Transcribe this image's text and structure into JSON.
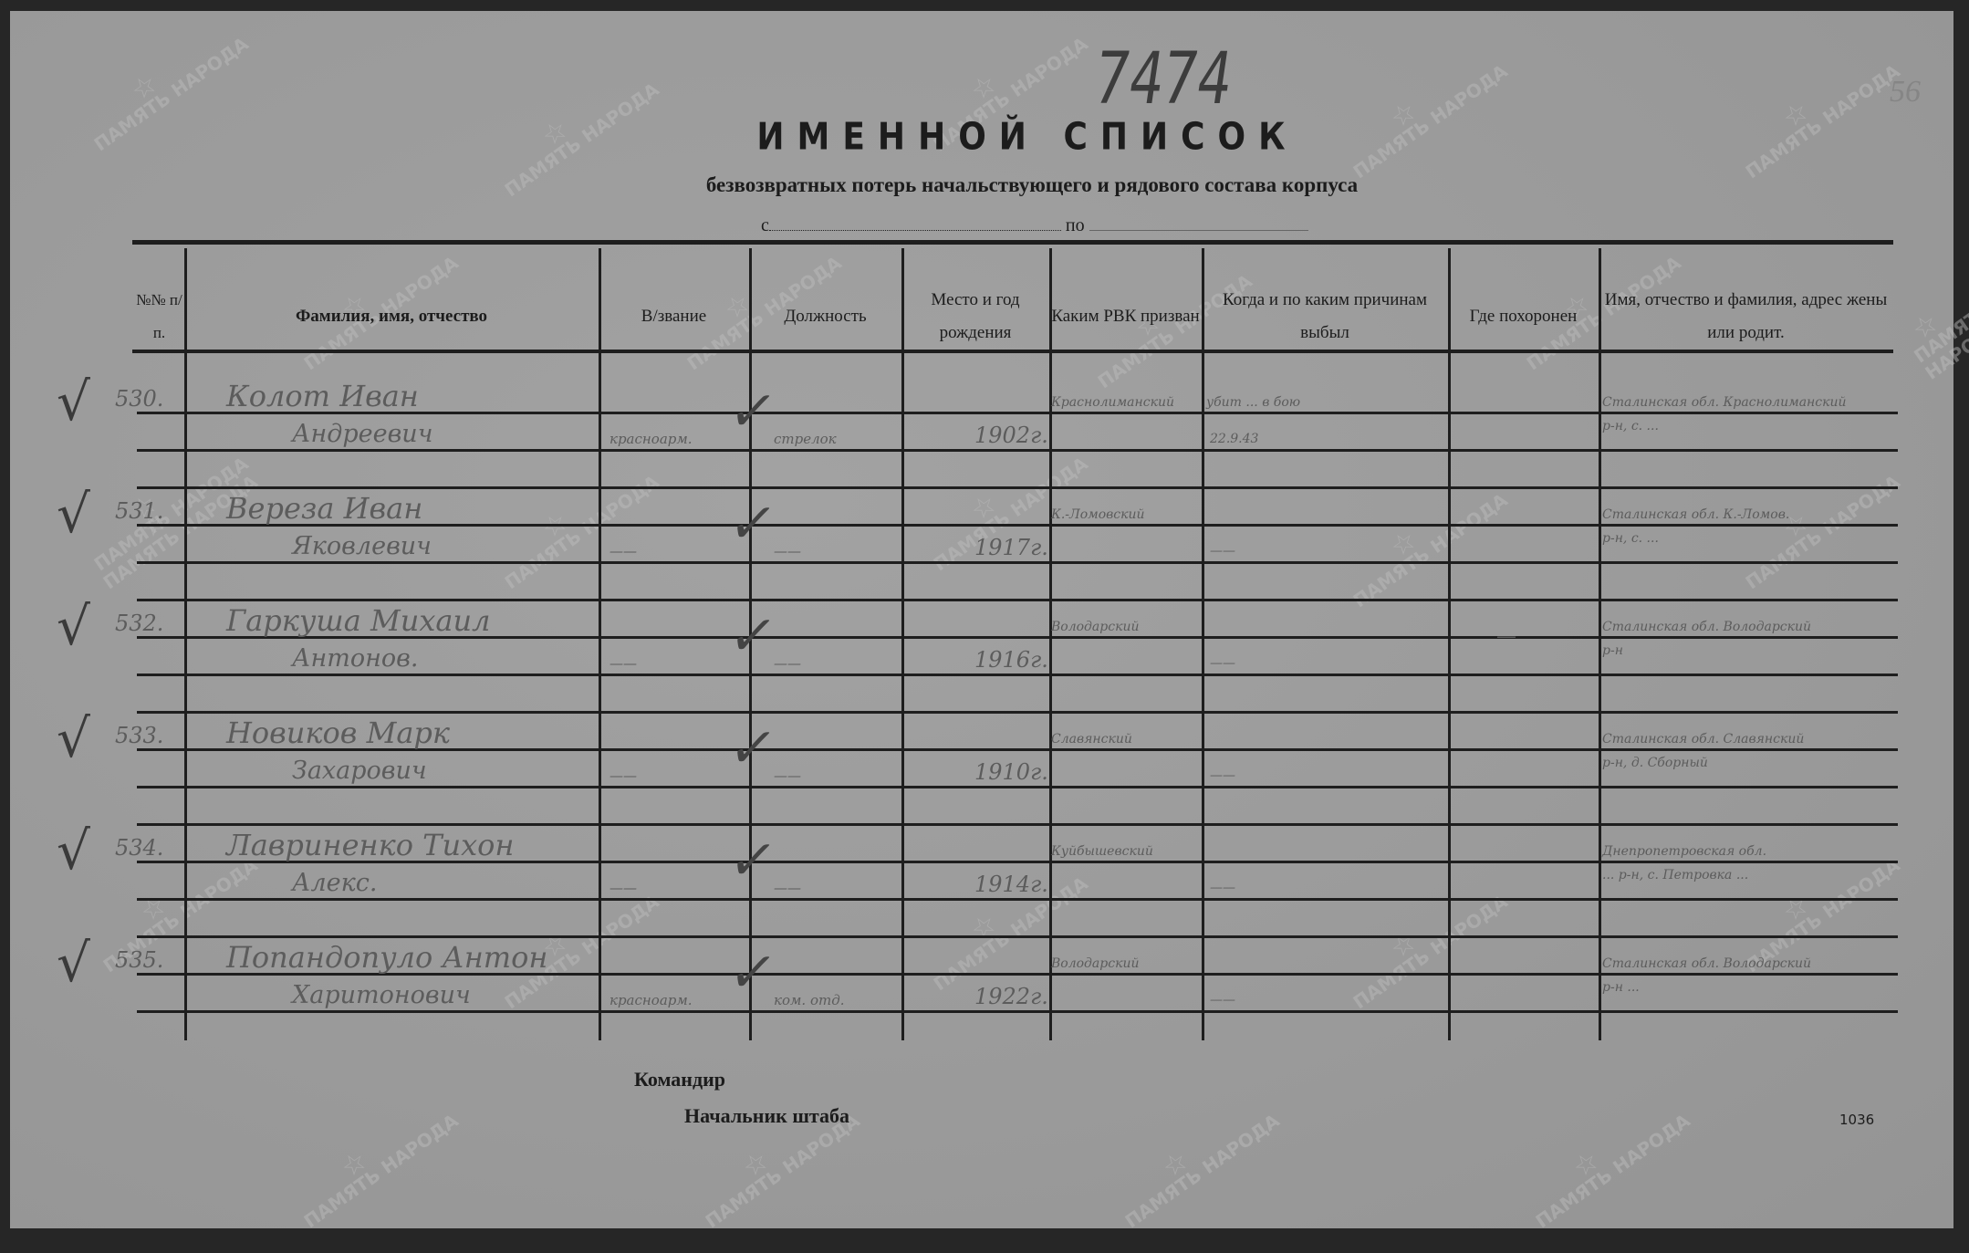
{
  "document": {
    "handwritten_number": "7474",
    "sheet_number": "56",
    "title": "ИМЕННОЙ СПИСОК",
    "subtitle": "безвозвратных потерь начальствующего и рядового состава корпуса",
    "period_from_label": "с",
    "period_to_label": "по",
    "form_number": "1036",
    "commander_label": "Командир",
    "chief_of_staff_label": "Начальник штаба",
    "watermark": "ПАМЯТЬ НАРОДА"
  },
  "table": {
    "headers": [
      "№№ п/п.",
      "Фамилия, имя, отчество",
      "В/звание",
      "Должность",
      "Место и год рождения",
      "Каким РВК призван",
      "Когда и по каким причинам выбыл",
      "Где похоронен",
      "Имя, отчество и фамилия, адрес жены или родит."
    ],
    "rows": [
      {
        "num": "530.",
        "name1": "Колот Иван",
        "name2": "Андреевич",
        "rank": "красноарм.",
        "position": "стрелок",
        "birth": "1902г.",
        "rvk": "Краснолиманский",
        "when1": "убит ... в бою",
        "when2": "22.9.43",
        "buried": "",
        "addr1": "Сталинская обл. Краснолиманский",
        "addr2": "р-н, с. ..."
      },
      {
        "num": "531.",
        "name1": "Вереза Иван",
        "name2": "Яковлевич",
        "rank": "——",
        "position": "——",
        "birth": "1917г.",
        "rvk": "К.-Ломовский",
        "when1": "",
        "when2": "——",
        "buried": "",
        "addr1": "Сталинская обл. К.-Ломов.",
        "addr2": "р-н, с. ..."
      },
      {
        "num": "532.",
        "name1": "Гаркуша Михаил",
        "name2": "Антонов.",
        "rank": "——",
        "position": "——",
        "birth": "1916г.",
        "rvk": "Володарский",
        "when1": "",
        "when2": "——",
        "buried": "—",
        "addr1": "Сталинская обл. Володарский",
        "addr2": "р-н"
      },
      {
        "num": "533.",
        "name1": "Новиков Марк",
        "name2": "Захарович",
        "rank": "——",
        "position": "——",
        "birth": "1910г.",
        "rvk": "Славянский",
        "when1": "",
        "when2": "——",
        "buried": "",
        "addr1": "Сталинская обл. Славянский",
        "addr2": "р-н, д. Сборный"
      },
      {
        "num": "534.",
        "name1": "Лавриненко Тихон",
        "name2": "Алекс.",
        "rank": "——",
        "position": "——",
        "birth": "1914г.",
        "rvk": "Куйбышевский",
        "when1": "",
        "when2": "——",
        "buried": "",
        "addr1": "Днепропетровская обл.",
        "addr2": "... р-н, с. Петровка ..."
      },
      {
        "num": "535.",
        "name1": "Попандопуло Антон",
        "name2": "Харитонович",
        "rank": "красноарм.",
        "position": "ком. отд.",
        "birth": "1922г.",
        "rvk": "Володарский",
        "when1": "",
        "when2": "——",
        "buried": "",
        "addr1": "Сталинская обл. Володарский",
        "addr2": "р-н ..."
      }
    ]
  },
  "colors": {
    "paper": "#9b9b9b",
    "ink": "#1c1c1c",
    "handwriting": "#5c5c5c",
    "frame": "#262626"
  }
}
